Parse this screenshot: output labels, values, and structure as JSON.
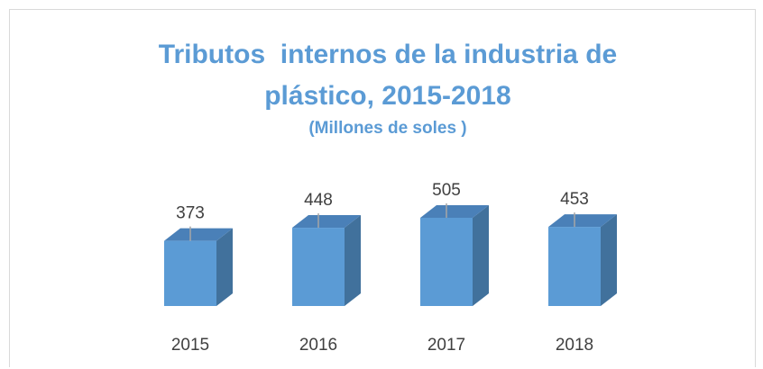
{
  "chart_data": {
    "type": "bar3d",
    "title": "Tributos  internos de la industria de plástico, 2015-2018",
    "subtitle": "(Millones de soles )",
    "categories": [
      "2015",
      "2016",
      "2017",
      "2018"
    ],
    "values": [
      373,
      448,
      505,
      453
    ],
    "color": "#5b9bd5"
  }
}
